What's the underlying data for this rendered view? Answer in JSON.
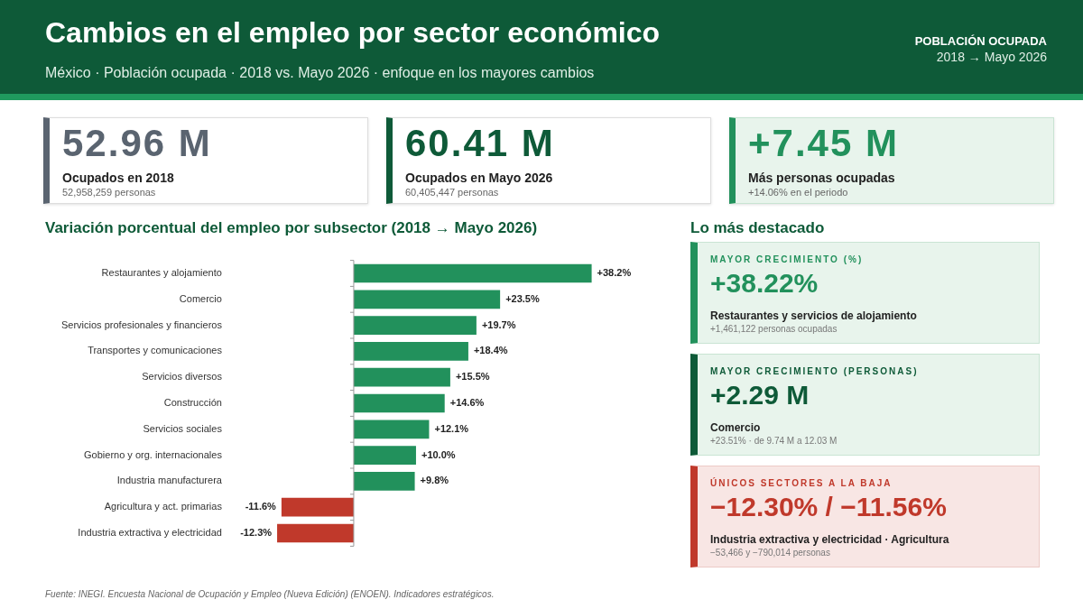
{
  "chart_data": [
    {
      "type": "other",
      "title": "Cambios en el empleo por sector económico",
      "subtitle": "México · Población ocupada · 2018 vs. Mayo 2026 · enfoque en los mayores cambios",
      "annotations": [
        "POBLACIÓN OCUPADA",
        "2018 → Mayo 2026",
        "52.96 M",
        "Ocupados en 2018",
        "52,958,259 personas",
        "60.41 M",
        "Ocupados en Mayo 2026",
        "60,405,447 personas",
        "+7.45 M",
        "Más personas ocupadas",
        "+14.06% en el periodo"
      ]
    },
    {
      "type": "bar",
      "orientation": "horizontal",
      "title": "Variación porcentual del empleo por subsector (2018 → Mayo 2026)",
      "categories": [
        "Restaurantes y alojamiento",
        "Comercio",
        "Servicios profesionales y financieros",
        "Transportes y comunicaciones",
        "Servicios diversos",
        "Construcción",
        "Servicios sociales",
        "Gobierno y org. internacionales",
        "Industria manufacturera",
        "Agricultura y act. primarias",
        "Industria extractiva y electricidad"
      ],
      "values": [
        38.2,
        23.5,
        19.7,
        18.4,
        15.5,
        14.6,
        12.1,
        10.0,
        9.8,
        -11.6,
        -12.3
      ],
      "value_labels": [
        "+38.2%",
        "+23.5%",
        "+19.7%",
        "+18.4%",
        "+15.5%",
        "+14.6%",
        "+12.1%",
        "+10.0%",
        "+9.8%",
        "-11.6%",
        "-12.3%"
      ],
      "colors": [
        "#22915c",
        "#22915c",
        "#22915c",
        "#22915c",
        "#22915c",
        "#22915c",
        "#22915c",
        "#22915c",
        "#22915c",
        "#c0392b",
        "#c0392b"
      ],
      "grid": false,
      "legend": false,
      "tick_labels": "y",
      "annotations": [
        "Fuente: INEGI. Encuesta Nacional de Ocupación y Empleo (Nueva Edición) (ENOEN). Indicadores estratégicos."
      ]
    },
    {
      "type": "other",
      "title": "Lo más destacado",
      "annotations": [
        "MAYOR CRECIMIENTO (%)",
        "+38.22%",
        "Restaurantes y servicios de alojamiento",
        "+1,461,122 personas ocupadas",
        "MAYOR CRECIMIENTO (PERSONAS)",
        "+2.29 M",
        "Comercio",
        "+23.51% · de 9.74 M a 12.03 M",
        "ÚNICOS SECTORES A LA BAJA",
        "−12.30% / −11.56%",
        "Industria extractiva y electricidad · Agricultura",
        "−53,466 y −790,014 personas"
      ]
    }
  ]
}
